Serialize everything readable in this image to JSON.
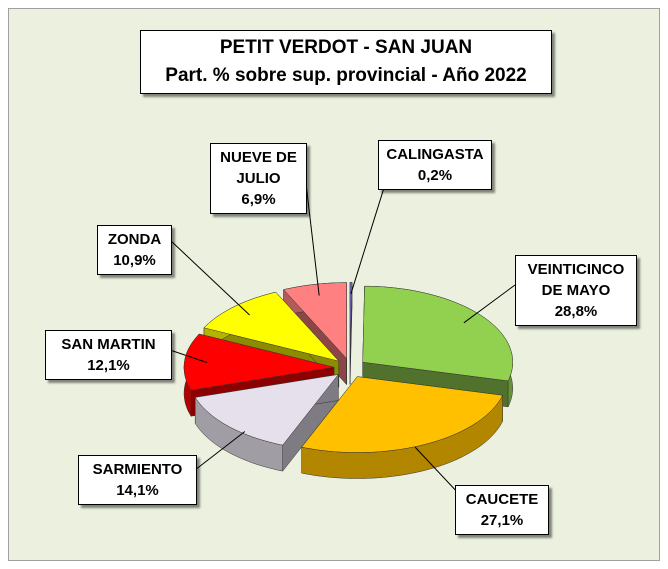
{
  "chart_data": {
    "type": "pie",
    "title": "PETIT VERDOT - SAN JUAN",
    "subtitle": "Part. % sobre sup. provincial - Año 2022",
    "categories": [
      "CALINGASTA",
      "VEINTICINCO DE MAYO",
      "CAUCETE",
      "SARMIENTO",
      "SAN MARTIN",
      "ZONDA",
      "NUEVE DE JULIO"
    ],
    "values": [
      0.2,
      28.8,
      27.1,
      14.1,
      12.1,
      10.9,
      6.9
    ],
    "value_labels": [
      "0,2%",
      "28,8%",
      "27,1%",
      "14,1%",
      "12,1%",
      "10,9%",
      "6,9%"
    ],
    "colors": [
      "#7b7bdc",
      "#92d050",
      "#ffc000",
      "#e6e0ec",
      "#ff0000",
      "#ffff00",
      "#ff8080"
    ]
  }
}
